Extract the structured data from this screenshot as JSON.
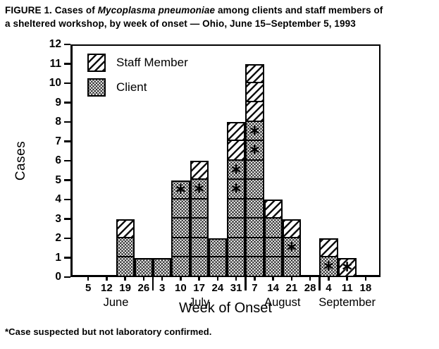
{
  "figure": {
    "title_prefix": "FIGURE 1. Cases of ",
    "title_italic": "Mycoplasma pneumoniae",
    "title_suffix": " among clients and staff members of",
    "title_line2": "a sheltered workshop, by week of onset — Ohio, June 15–September 5, 1993"
  },
  "chart_data": {
    "type": "bar",
    "stacked": true,
    "title": "FIGURE 1. Cases of Mycoplasma pneumoniae among clients and staff members of a sheltered workshop, by week of onset — Ohio, June 15–September 5, 1993",
    "xlabel": "Week of Onset",
    "ylabel": "Cases",
    "ylim": [
      0,
      12
    ],
    "y_ticks": [
      0,
      1,
      2,
      3,
      4,
      5,
      6,
      7,
      8,
      9,
      10,
      11,
      12
    ],
    "grid": false,
    "legend_position": "top-left-inside",
    "legend": [
      {
        "name": "Staff Member",
        "pattern": "diagonal-hatch"
      },
      {
        "name": "Client",
        "pattern": "cross-hatch"
      }
    ],
    "suspected_marker": "∗",
    "footnote": "*Case suspected but not laboratory confirmed.",
    "categories": [
      "June 5",
      "June 12",
      "June 19",
      "June 26",
      "July 3",
      "July 10",
      "July 17",
      "July 24",
      "July 31",
      "August 7",
      "August 14",
      "August 21",
      "August 28",
      "September 4",
      "September 11",
      "September 18"
    ],
    "series": [
      {
        "name": "Client",
        "values": [
          0,
          0,
          2,
          1,
          1,
          5,
          5,
          2,
          6,
          8,
          3,
          2,
          0,
          1,
          0,
          0
        ]
      },
      {
        "name": "Staff Member",
        "values": [
          0,
          0,
          1,
          0,
          0,
          0,
          1,
          0,
          2,
          3,
          1,
          1,
          0,
          1,
          1,
          0
        ]
      }
    ],
    "months": [
      {
        "name": "June",
        "weeks": [
          "5",
          "12",
          "19",
          "26"
        ]
      },
      {
        "name": "July",
        "weeks": [
          "3",
          "10",
          "17",
          "24",
          "31"
        ]
      },
      {
        "name": "August",
        "weeks": [
          "7",
          "14",
          "21",
          "28"
        ]
      },
      {
        "name": "September",
        "weeks": [
          "4",
          "11",
          "18"
        ]
      }
    ],
    "columns": [
      {
        "month": "June",
        "week": "5",
        "client": 0,
        "staff": 0,
        "client_suspected": [],
        "staff_suspected": []
      },
      {
        "month": "June",
        "week": "12",
        "client": 0,
        "staff": 0,
        "client_suspected": [],
        "staff_suspected": []
      },
      {
        "month": "June",
        "week": "19",
        "client": 2,
        "staff": 1,
        "client_suspected": [],
        "staff_suspected": []
      },
      {
        "month": "June",
        "week": "26",
        "client": 1,
        "staff": 0,
        "client_suspected": [],
        "staff_suspected": []
      },
      {
        "month": "July",
        "week": "3",
        "client": 1,
        "staff": 0,
        "client_suspected": [],
        "staff_suspected": []
      },
      {
        "month": "July",
        "week": "10",
        "client": 5,
        "staff": 0,
        "client_suspected": [
          5
        ],
        "staff_suspected": []
      },
      {
        "month": "July",
        "week": "17",
        "client": 5,
        "staff": 1,
        "client_suspected": [
          5
        ],
        "staff_suspected": []
      },
      {
        "month": "July",
        "week": "24",
        "client": 2,
        "staff": 0,
        "client_suspected": [],
        "staff_suspected": []
      },
      {
        "month": "July",
        "week": "31",
        "client": 6,
        "staff": 2,
        "client_suspected": [
          5,
          6
        ],
        "staff_suspected": []
      },
      {
        "month": "August",
        "week": "7",
        "client": 8,
        "staff": 3,
        "client_suspected": [
          7,
          8
        ],
        "staff_suspected": []
      },
      {
        "month": "August",
        "week": "14",
        "client": 3,
        "staff": 1,
        "client_suspected": [],
        "staff_suspected": []
      },
      {
        "month": "August",
        "week": "21",
        "client": 2,
        "staff": 1,
        "client_suspected": [
          2
        ],
        "staff_suspected": []
      },
      {
        "month": "August",
        "week": "28",
        "client": 0,
        "staff": 0,
        "client_suspected": [],
        "staff_suspected": []
      },
      {
        "month": "September",
        "week": "4",
        "client": 1,
        "staff": 1,
        "client_suspected": [
          1
        ],
        "staff_suspected": []
      },
      {
        "month": "September",
        "week": "11",
        "client": 0,
        "staff": 1,
        "client_suspected": [],
        "staff_suspected": [
          1
        ]
      },
      {
        "month": "September",
        "week": "18",
        "client": 0,
        "staff": 0,
        "client_suspected": [],
        "staff_suspected": []
      }
    ]
  }
}
